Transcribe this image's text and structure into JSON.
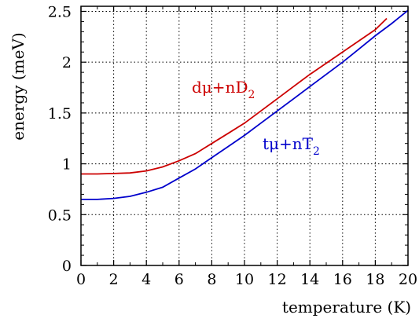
{
  "chart_data": {
    "type": "line",
    "xlabel": "temperature (K)",
    "ylabel": "energy (meV)",
    "xlim": [
      0,
      20
    ],
    "ylim": [
      0,
      2.55
    ],
    "x_ticks": [
      0,
      2,
      4,
      6,
      8,
      10,
      12,
      14,
      16,
      18,
      20
    ],
    "y_ticks": [
      0,
      0.5,
      1,
      1.5,
      2,
      2.5
    ],
    "y_tick_labels": [
      "0",
      "0.5",
      "1",
      "1.5",
      "2",
      "2.5"
    ],
    "grid": true,
    "series": [
      {
        "label_main": "dμ+nD",
        "label_sub": "2",
        "color": "#cc0000",
        "x": [
          0,
          1,
          2,
          3,
          4,
          5,
          6,
          7,
          8,
          9,
          10,
          11,
          12,
          13,
          14,
          15,
          16,
          17,
          18,
          18.7
        ],
        "y": [
          0.9,
          0.9,
          0.905,
          0.91,
          0.93,
          0.97,
          1.03,
          1.1,
          1.2,
          1.3,
          1.4,
          1.52,
          1.64,
          1.76,
          1.88,
          1.99,
          2.1,
          2.21,
          2.32,
          2.43
        ]
      },
      {
        "label_main": "tμ+nT",
        "label_sub": "2",
        "color": "#0000cc",
        "x": [
          0,
          1,
          2,
          3,
          4,
          5,
          6,
          7,
          8,
          9,
          10,
          11,
          12,
          13,
          14,
          15,
          16,
          17,
          18,
          19,
          20
        ],
        "y": [
          0.65,
          0.65,
          0.66,
          0.68,
          0.72,
          0.77,
          0.86,
          0.95,
          1.06,
          1.17,
          1.28,
          1.4,
          1.52,
          1.64,
          1.76,
          1.88,
          2.0,
          2.13,
          2.26,
          2.38,
          2.51
        ]
      }
    ]
  }
}
